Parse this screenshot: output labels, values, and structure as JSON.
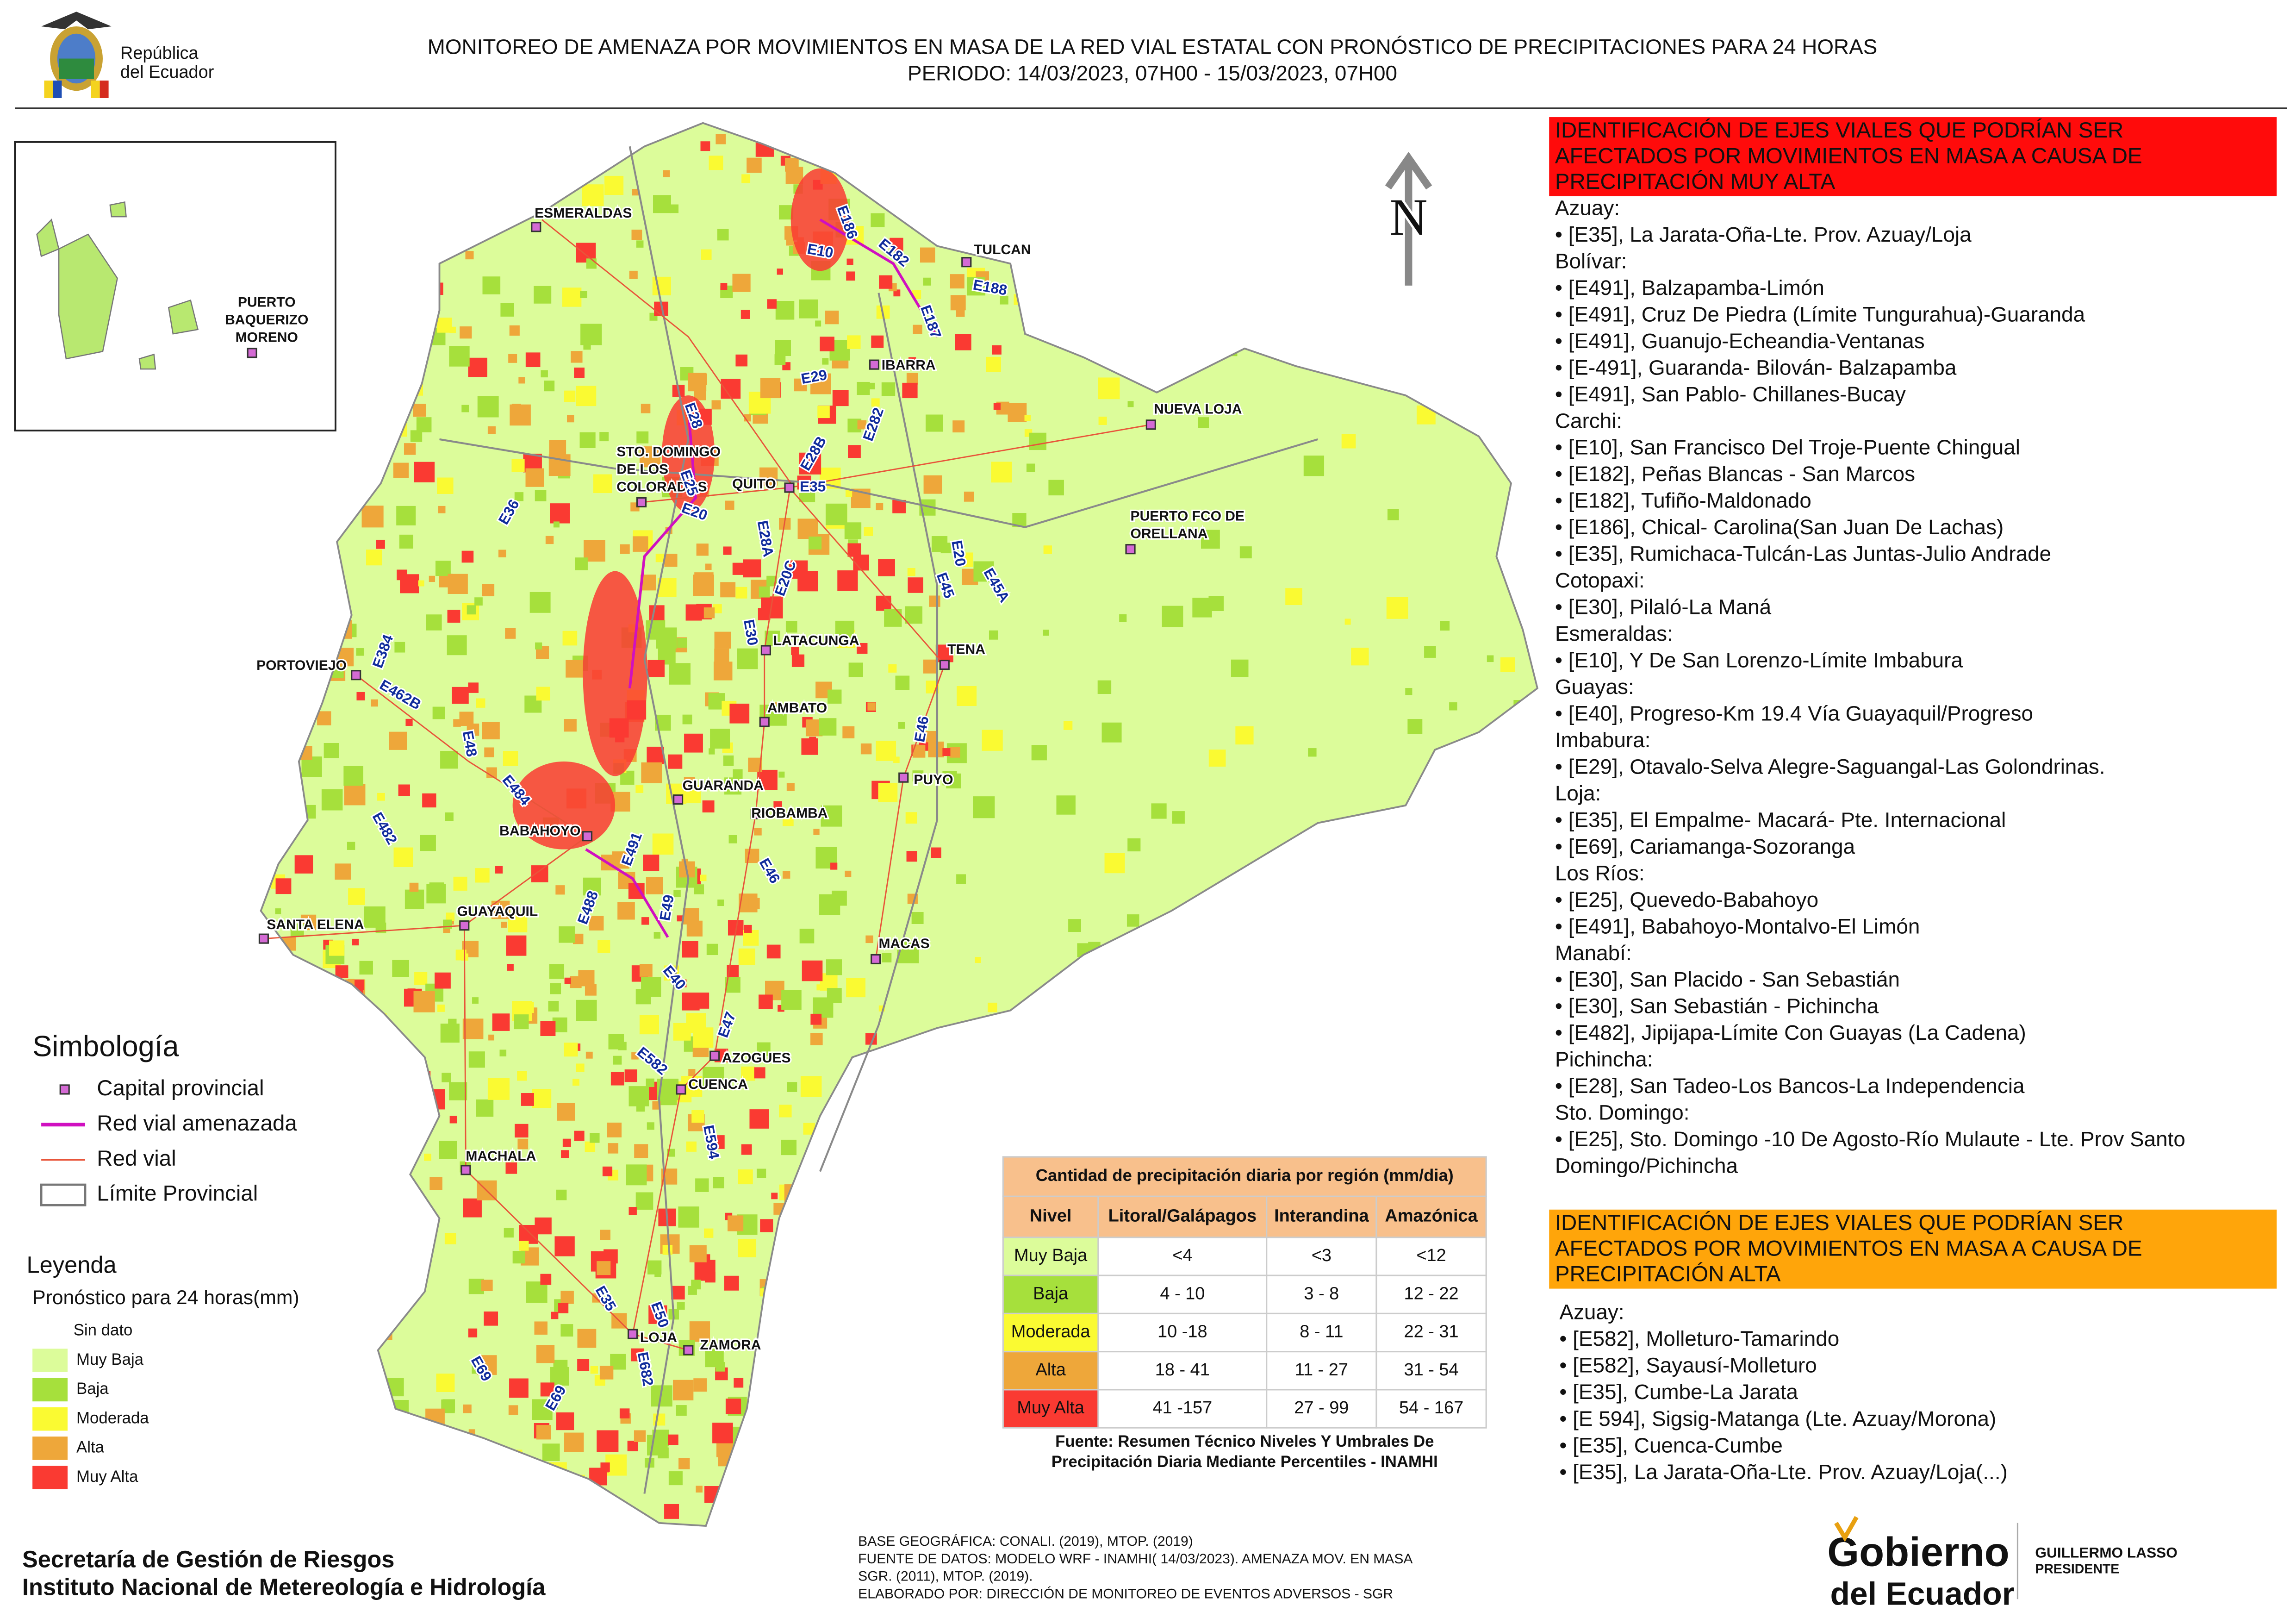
{
  "header": {
    "title": "MONITOREO DE AMENAZA POR MOVIMIENTOS EN MASA DE LA RED VIAL  ESTATAL  CON PRONÓSTICO  DE  PRECIPITACIONES PARA 24 HORAS",
    "period": "PERIODO: 14/03/2023, 07H00 - 15/03/2023, 07H00",
    "logo_text": [
      "República",
      "del Ecuador"
    ]
  },
  "map": {
    "north": "N",
    "inset_city": [
      "PUERTO",
      "BAQUERIZO",
      "MORENO"
    ],
    "cities": [
      [
        "ESMERALDAS"
      ],
      [
        "TULCAN"
      ],
      [
        "IBARRA"
      ],
      [
        "NUEVA LOJA"
      ],
      [
        "STO. DOMINGO",
        "DE LOS",
        "COLORADOS"
      ],
      [
        "QUITO"
      ],
      [
        "PUERTO FCO DE",
        "ORELLANA"
      ],
      [
        "PORTOVIEJO"
      ],
      [
        "LATACUNGA"
      ],
      [
        "TENA"
      ],
      [
        "AMBATO"
      ],
      [
        "PUYO"
      ],
      [
        "GUARANDA"
      ],
      [
        "RIOBAMBA"
      ],
      [
        "BABAHOYO"
      ],
      [
        "SANTA ELENA"
      ],
      [
        "GUAYAQUIL"
      ],
      [
        "MACAS"
      ],
      [
        "AZOGUES"
      ],
      [
        "CUENCA"
      ],
      [
        "MACHALA"
      ],
      [
        "LOJA"
      ],
      [
        "ZAMORA"
      ]
    ],
    "roads": [
      "E10",
      "E182",
      "E186",
      "E187",
      "E188",
      "E28",
      "E29",
      "E28B",
      "E282",
      "E25",
      "E20",
      "E28A",
      "E35",
      "E36",
      "E20C",
      "E45",
      "E20",
      "E45A",
      "E30",
      "E384",
      "E462B",
      "E48",
      "E46",
      "E484",
      "E482",
      "E491",
      "E488",
      "E49",
      "E46",
      "E40",
      "E47",
      "E582",
      "E594",
      "E35",
      "E50",
      "E682",
      "E69",
      "E69"
    ]
  },
  "symbology": {
    "title": "Simbología",
    "items": [
      "Capital provincial",
      "Red vial amenazada",
      "Red vial",
      "Límite Provincial"
    ]
  },
  "legend": {
    "title": "Leyenda",
    "subtitle": "Pronóstico para 24 horas(mm)",
    "items": [
      {
        "label": "Sin dato",
        "color": "#ffffff"
      },
      {
        "label": "Muy Baja",
        "color": "#dcfc9a"
      },
      {
        "label": "Baja",
        "color": "#a6e03c"
      },
      {
        "label": "Moderada",
        "color": "#fafa32"
      },
      {
        "label": "Alta",
        "color": "#eea73a"
      },
      {
        "label": "Muy Alta",
        "color": "#fa3a32"
      }
    ]
  },
  "table": {
    "title": "Cantidad de precipitación diaria por región (mm/dia)",
    "header": [
      "Nivel",
      "Litoral/Galápagos",
      "Interandina",
      "Amazónica"
    ],
    "rows": [
      [
        "Muy Baja",
        "<4",
        "<3",
        "<12"
      ],
      [
        "Baja",
        "4 - 10",
        "3 - 8",
        "12 - 22"
      ],
      [
        "Moderada",
        "10 -18",
        "8 - 11",
        "22 - 31"
      ],
      [
        "Alta",
        "18 - 41",
        "11 - 27",
        "31 - 54"
      ],
      [
        "Muy Alta",
        "41 -157",
        "27 - 99",
        "54 - 167"
      ]
    ],
    "source": [
      "Fuente: Resumen Técnico Niveles Y Umbrales De",
      "Precipitación Diaria Mediante Percentiles - INAMHI"
    ]
  },
  "panels": [
    {
      "title": [
        "IDENTIFICACIÓN DE EJES VIALES QUE PODRÍAN SER",
        "AFECTADOS POR MOVIMIENTOS EN MASA A CAUSA DE",
        "PRECIPITACIÓN MUY ALTA"
      ],
      "lines": [
        "Azuay:",
        "• [E35], La Jarata-Oña-Lte. Prov. Azuay/Loja",
        "Bolívar:",
        "• [E491], Balzapamba-Limón",
        "• [E491], Cruz De Piedra (Límite Tungurahua)-Guaranda",
        "• [E491], Guanujo-Echeandia-Ventanas",
        "• [E-491], Guaranda- Bilován- Balzapamba",
        "• [E491], San Pablo- Chillanes-Bucay",
        "Carchi:",
        "• [E10], San Francisco Del Troje-Puente Chingual",
        "• [E182], Peñas Blancas - San Marcos",
        "• [E182], Tufiño-Maldonado",
        "• [E186], Chical- Carolina(San Juan De Lachas)",
        "• [E35], Rumichaca-Tulcán-Las Juntas-Julio Andrade",
        "Cotopaxi:",
        "• [E30], Pilaló-La Maná",
        "Esmeraldas:",
        "• [E10], Y De San Lorenzo-Límite Imbabura",
        "Guayas:",
        "• [E40], Progreso-Km 19.4 Vía Guayaquil/Progreso",
        "Imbabura:",
        "• [E29], Otavalo-Selva Alegre-Saguangal-Las Golondrinas.",
        "Loja:",
        "• [E35], El Empalme- Macará- Pte. Internacional",
        "• [E69], Cariamanga-Sozoranga",
        "Los Ríos:",
        "• [E25], Quevedo-Babahoyo",
        "• [E491], Babahoyo-Montalvo-El Limón",
        "Manabí:",
        "• [E30], San Placido - San Sebastián",
        "• [E30], San Sebastián - Pichincha",
        "• [E482], Jipijapa-Límite Con Guayas (La Cadena)",
        "Pichincha:",
        "• [E28], San Tadeo-Los Bancos-La Independencia",
        "Sto. Domingo:",
        "• [E25], Sto. Domingo -10 De Agosto-Río Mulaute - Lte. Prov Santo",
        "Domingo/Pichincha"
      ]
    },
    {
      "title": [
        "IDENTIFICACIÓN DE EJES VIALES QUE PODRÍAN SER",
        "AFECTADOS POR MOVIMIENTOS EN MASA A CAUSA DE",
        "PRECIPITACIÓN  ALTA"
      ],
      "lines": [
        "Azuay:",
        "• [E582], Molleturo-Tamarindo",
        "• [E582], Sayausí-Molleturo",
        "• [E35], Cumbe-La Jarata",
        "• [E 594], Sigsig-Matanga (Lte. Azuay/Morona)",
        "• [E35], Cuenca-Cumbe",
        "• [E35], La Jarata-Oña-Lte. Prov. Azuay/Loja(...)"
      ]
    }
  ],
  "footer": {
    "institutions": [
      "Secretaría de Gestión de Riesgos",
      "Instituto Nacional de Metereología e Hidrología"
    ],
    "credits": [
      "BASE GEOGRÁFICA: CONALI. (2019), MTOP. (2019)",
      "FUENTE DE DATOS: MODELO WRF - INAMHI( 14/03/2023).  AMENAZA MOV. EN MASA",
      "SGR. (2011), MTOP. (2019).",
      "ELABORADO POR: DIRECCIÓN DE MONITOREO DE EVENTOS ADVERSOS - SGR"
    ],
    "government": [
      "Gobierno",
      "del Ecuador"
    ],
    "president": [
      "GUILLERMO LASSO",
      "PRESIDENTE"
    ]
  }
}
